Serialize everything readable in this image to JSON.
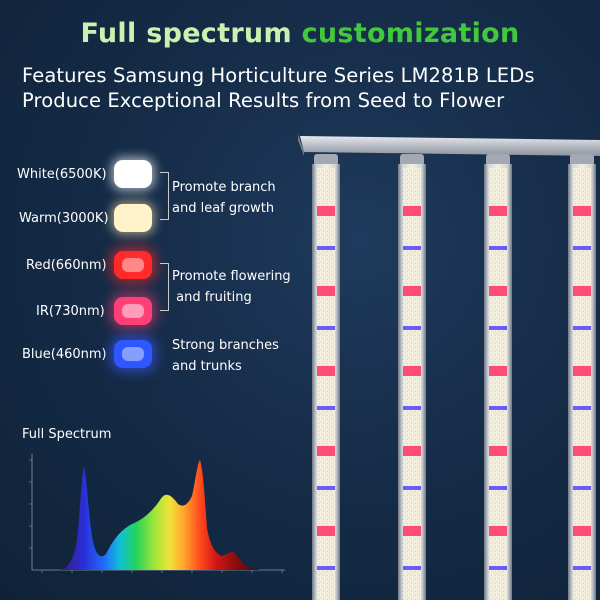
{
  "header": {
    "title_part1": "Full spectrum",
    "title_part2": "customization",
    "subtitle_line1": "Features Samsung Horticulture  Series LM281B LEDs",
    "subtitle_line2": "Produce Exceptional Results from Seed to Flower"
  },
  "leds": [
    {
      "label": "White(6500K)",
      "color": "#ffffff"
    },
    {
      "label": "Warm(3000K)",
      "color": "#fff2c8"
    },
    {
      "label": "Red(660nm)",
      "color": "#ff2b2b"
    },
    {
      "label": "IR(730nm)",
      "color": "#ff3f77"
    },
    {
      "label": "Blue(460nm)",
      "color": "#2f57ff"
    }
  ],
  "effects": {
    "white_warm_line1": "Promote branch",
    "white_warm_line2": "and leaf growth",
    "red_ir_line1": "Promote flowering",
    "red_ir_line2": " and fruiting",
    "blue_line1": "Strong branches",
    "blue_line2": "and trunks"
  },
  "spectrum": {
    "label": "Full Spectrum"
  },
  "colors": {
    "background": "#142a45",
    "title_light_green": "#c9f2b0",
    "title_green": "#42c83c"
  }
}
